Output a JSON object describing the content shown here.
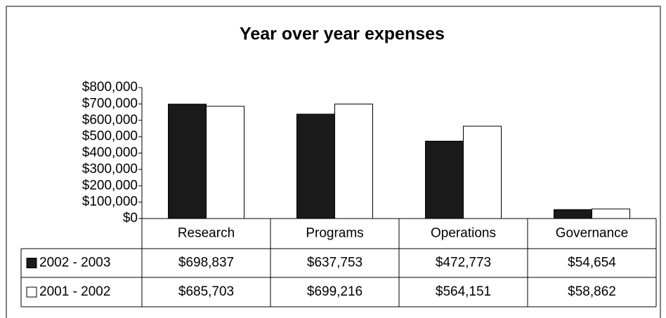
{
  "chart_data": {
    "type": "bar",
    "title": "Year over year expenses",
    "categories": [
      "Research",
      "Programs",
      "Operations",
      "Governance"
    ],
    "series": [
      {
        "name": "2002 - 2003",
        "color": "#1a1a1a",
        "values": [
          698837,
          637753,
          472773,
          54654
        ],
        "value_labels": [
          "$698,837",
          "$637,753",
          "$472,773",
          "$54,654"
        ]
      },
      {
        "name": "2001 - 2002",
        "color": "#ffffff",
        "values": [
          685703,
          699216,
          564151,
          58862
        ],
        "value_labels": [
          "$685,703",
          "$699,216",
          "$564,151",
          "$58,862"
        ]
      }
    ],
    "ylim": [
      0,
      800000
    ],
    "yticks": [
      {
        "value": 0,
        "label": "$0"
      },
      {
        "value": 100000,
        "label": "$100,000"
      },
      {
        "value": 200000,
        "label": "$200,000"
      },
      {
        "value": 300000,
        "label": "$300,000"
      },
      {
        "value": 400000,
        "label": "$400,000"
      },
      {
        "value": 500000,
        "label": "$500,000"
      },
      {
        "value": 600000,
        "label": "$600,000"
      },
      {
        "value": 700000,
        "label": "$700,000"
      },
      {
        "value": 800000,
        "label": "$800,000"
      }
    ]
  }
}
